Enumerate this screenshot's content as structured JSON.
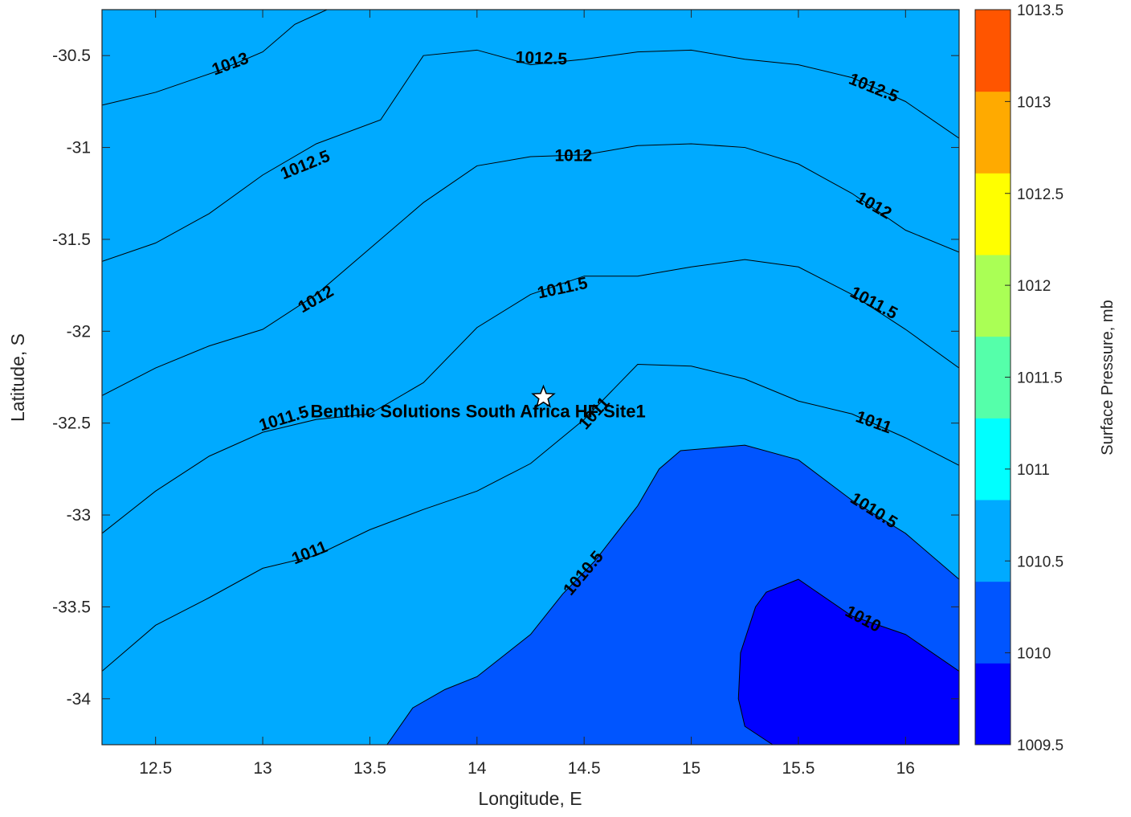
{
  "chart_data": {
    "type": "contour",
    "title": "",
    "xlabel": "Longitude, E",
    "ylabel": "Latitude, S",
    "xlim": [
      12.25,
      16.25
    ],
    "ylim": [
      -34.25,
      -30.25
    ],
    "xticks": [
      12.5,
      13,
      13.5,
      14,
      14.5,
      15,
      15.5,
      16
    ],
    "yticks": [
      -30.5,
      -31,
      -31.5,
      -32,
      -32.5,
      -33,
      -33.5,
      -34
    ],
    "grid": false,
    "colorbar": {
      "label": "Surface Pressure, mb",
      "range": [
        1009.5,
        1013.5
      ],
      "ticks": [
        1009.5,
        1010,
        1010.5,
        1011,
        1011.5,
        1012,
        1012.5,
        1013,
        1013.5
      ],
      "band_colors": [
        "#0000ff",
        "#0055ff",
        "#00aaff",
        "#00ffff",
        "#55ffaa",
        "#aaff55",
        "#ffff00",
        "#ffaa00",
        "#ff5500"
      ]
    },
    "levels": [
      1010,
      1010.5,
      1011,
      1011.5,
      1012,
      1012.5,
      1013
    ],
    "contours": [
      {
        "level": 1013,
        "points": [
          [
            12.25,
            -30.77
          ],
          [
            12.5,
            -30.7
          ],
          [
            12.8,
            -30.58
          ],
          [
            13.0,
            -30.48
          ],
          [
            13.15,
            -30.33
          ],
          [
            13.3,
            -30.25
          ]
        ]
      },
      {
        "level": 1012.5,
        "points": [
          [
            12.25,
            -31.62
          ],
          [
            12.5,
            -31.52
          ],
          [
            12.75,
            -31.36
          ],
          [
            13.0,
            -31.15
          ],
          [
            13.25,
            -30.98
          ],
          [
            13.55,
            -30.85
          ],
          [
            13.75,
            -30.5
          ],
          [
            14.0,
            -30.47
          ],
          [
            14.25,
            -30.55
          ],
          [
            14.5,
            -30.52
          ],
          [
            14.75,
            -30.48
          ],
          [
            15.0,
            -30.47
          ],
          [
            15.25,
            -30.52
          ],
          [
            15.5,
            -30.55
          ],
          [
            15.75,
            -30.62
          ],
          [
            16.0,
            -30.75
          ],
          [
            16.25,
            -30.95
          ]
        ]
      },
      {
        "level": 1012,
        "points": [
          [
            12.25,
            -32.35
          ],
          [
            12.5,
            -32.2
          ],
          [
            12.75,
            -32.08
          ],
          [
            13.0,
            -31.99
          ],
          [
            13.25,
            -31.8
          ],
          [
            13.5,
            -31.55
          ],
          [
            13.75,
            -31.3
          ],
          [
            14.0,
            -31.1
          ],
          [
            14.25,
            -31.05
          ],
          [
            14.5,
            -31.04
          ],
          [
            14.75,
            -30.99
          ],
          [
            15.0,
            -30.98
          ],
          [
            15.25,
            -31.0
          ],
          [
            15.5,
            -31.09
          ],
          [
            15.75,
            -31.25
          ],
          [
            16.0,
            -31.45
          ],
          [
            16.25,
            -31.57
          ]
        ]
      },
      {
        "level": 1011.5,
        "points": [
          [
            12.25,
            -33.1
          ],
          [
            12.5,
            -32.87
          ],
          [
            12.75,
            -32.68
          ],
          [
            13.0,
            -32.55
          ],
          [
            13.25,
            -32.48
          ],
          [
            13.5,
            -32.45
          ],
          [
            13.75,
            -32.28
          ],
          [
            14.0,
            -31.98
          ],
          [
            14.25,
            -31.8
          ],
          [
            14.5,
            -31.7
          ],
          [
            14.75,
            -31.7
          ],
          [
            15.0,
            -31.65
          ],
          [
            15.25,
            -31.61
          ],
          [
            15.5,
            -31.65
          ],
          [
            15.75,
            -31.8
          ],
          [
            16.0,
            -31.99
          ],
          [
            16.25,
            -32.2
          ]
        ]
      },
      {
        "level": 1011,
        "points": [
          [
            12.25,
            -33.85
          ],
          [
            12.5,
            -33.6
          ],
          [
            12.75,
            -33.45
          ],
          [
            13.0,
            -33.29
          ],
          [
            13.25,
            -33.22
          ],
          [
            13.5,
            -33.08
          ],
          [
            13.75,
            -32.97
          ],
          [
            14.0,
            -32.87
          ],
          [
            14.25,
            -32.72
          ],
          [
            14.5,
            -32.48
          ],
          [
            14.65,
            -32.3
          ],
          [
            14.75,
            -32.18
          ],
          [
            15.0,
            -32.19
          ],
          [
            15.25,
            -32.26
          ],
          [
            15.5,
            -32.38
          ],
          [
            15.75,
            -32.45
          ],
          [
            16.0,
            -32.58
          ],
          [
            16.25,
            -32.73
          ]
        ]
      },
      {
        "level": 1010.5,
        "points": [
          [
            13.58,
            -34.25
          ],
          [
            13.7,
            -34.05
          ],
          [
            13.85,
            -33.95
          ],
          [
            14.0,
            -33.88
          ],
          [
            14.25,
            -33.65
          ],
          [
            14.4,
            -33.43
          ],
          [
            14.55,
            -33.25
          ],
          [
            14.75,
            -32.95
          ],
          [
            14.85,
            -32.75
          ],
          [
            14.95,
            -32.65
          ],
          [
            15.25,
            -32.62
          ],
          [
            15.5,
            -32.7
          ],
          [
            15.75,
            -32.92
          ],
          [
            16.0,
            -33.1
          ],
          [
            16.25,
            -33.35
          ]
        ]
      },
      {
        "level": 1010,
        "points": [
          [
            15.38,
            -34.25
          ],
          [
            15.25,
            -34.15
          ],
          [
            15.22,
            -34.0
          ],
          [
            15.23,
            -33.75
          ],
          [
            15.3,
            -33.5
          ],
          [
            15.35,
            -33.42
          ],
          [
            15.5,
            -33.35
          ],
          [
            15.75,
            -33.55
          ],
          [
            16.0,
            -33.65
          ],
          [
            16.25,
            -33.85
          ]
        ]
      }
    ],
    "contour_labels": [
      {
        "text": "1013",
        "lon": 12.85,
        "lat": -30.55,
        "angle": -20
      },
      {
        "text": "1012.5",
        "lon": 14.3,
        "lat": -30.52,
        "angle": 2
      },
      {
        "text": "1012.5",
        "lon": 15.85,
        "lat": -30.68,
        "angle": 22
      },
      {
        "text": "1012.5",
        "lon": 13.2,
        "lat": -31.1,
        "angle": -22
      },
      {
        "text": "1012",
        "lon": 14.45,
        "lat": -31.05,
        "angle": 0
      },
      {
        "text": "1012",
        "lon": 15.85,
        "lat": -31.32,
        "angle": 30
      },
      {
        "text": "1012",
        "lon": 13.25,
        "lat": -31.83,
        "angle": -30
      },
      {
        "text": "1011.5",
        "lon": 14.4,
        "lat": -31.77,
        "angle": -12
      },
      {
        "text": "1011.5",
        "lon": 15.85,
        "lat": -31.85,
        "angle": 28
      },
      {
        "text": "1011.5",
        "lon": 13.1,
        "lat": -32.48,
        "angle": -17
      },
      {
        "text": "1011",
        "lon": 14.55,
        "lat": -32.45,
        "angle": -48
      },
      {
        "text": "1011",
        "lon": 15.85,
        "lat": -32.5,
        "angle": 20
      },
      {
        "text": "1011",
        "lon": 13.22,
        "lat": -33.21,
        "angle": -22
      },
      {
        "text": "1010.5",
        "lon": 14.5,
        "lat": -33.32,
        "angle": -50
      },
      {
        "text": "1010.5",
        "lon": 15.85,
        "lat": -32.98,
        "angle": 32
      },
      {
        "text": "1010",
        "lon": 15.8,
        "lat": -33.57,
        "angle": 28
      }
    ],
    "site": {
      "name": "Benthic Solutions South Africa HF Site1",
      "lon": 14.31,
      "lat": -32.36
    }
  }
}
